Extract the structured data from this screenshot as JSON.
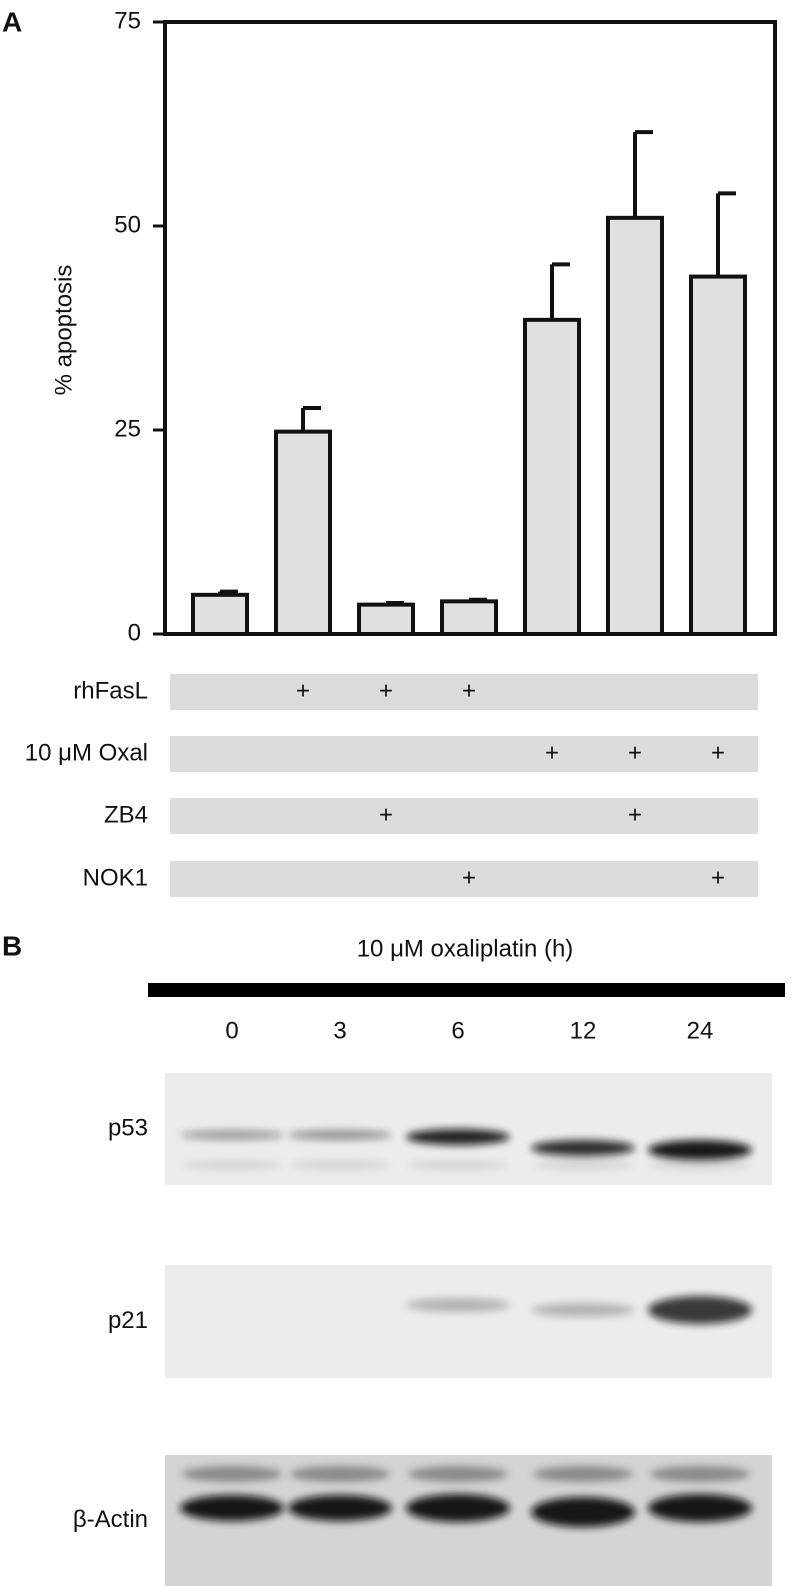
{
  "panel_a_label": "A",
  "chart_data": {
    "type": "bar",
    "ylabel": "% apoptosis",
    "categories": [
      null,
      null,
      null,
      null,
      null,
      null,
      null
    ],
    "values": [
      4.8,
      24.8,
      3.6,
      4.0,
      38.5,
      51.0,
      43.8
    ],
    "errors": [
      0.4,
      2.9,
      0.2,
      0.2,
      6.8,
      10.5,
      10.2
    ],
    "color": "#e0e0e0",
    "ylim": [
      0,
      75
    ],
    "yticks": [
      0,
      25,
      50,
      75
    ],
    "grid": false
  },
  "treatments": {
    "symbol": "+",
    "rows": [
      {
        "label": "rhFasL",
        "present": [
          false,
          true,
          true,
          true,
          false,
          false,
          false
        ]
      },
      {
        "label": "10 μM Oxal",
        "present": [
          false,
          false,
          false,
          false,
          true,
          true,
          true
        ]
      },
      {
        "label": "ZB4",
        "present": [
          false,
          false,
          true,
          false,
          false,
          true,
          false
        ]
      },
      {
        "label": "NOK1",
        "present": [
          false,
          false,
          false,
          true,
          false,
          false,
          true
        ]
      }
    ]
  },
  "panel_b": {
    "label": "B",
    "title": "10 μM oxaliplatin (h)",
    "lanes": [
      "0",
      "3",
      "6",
      "12",
      "24"
    ],
    "blots": [
      {
        "label": "p53"
      },
      {
        "label": "p21"
      },
      {
        "label": "β-Actin"
      }
    ]
  }
}
